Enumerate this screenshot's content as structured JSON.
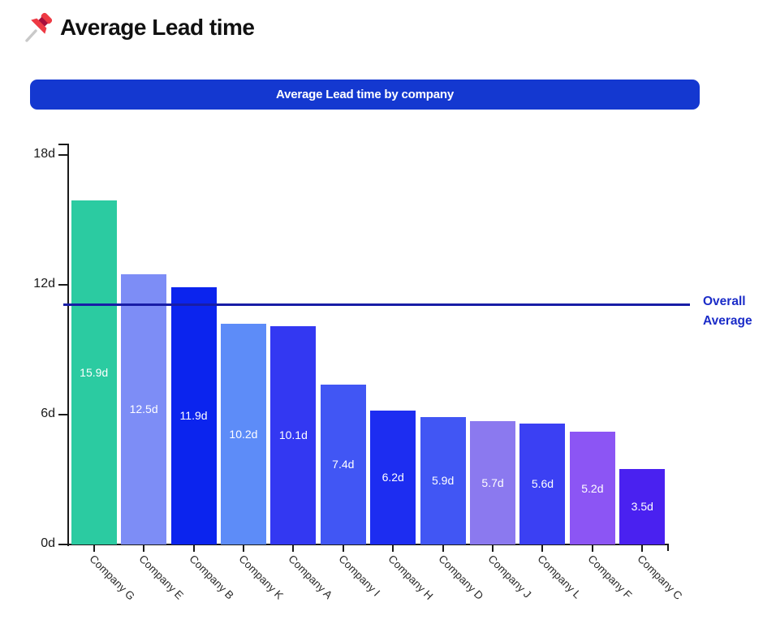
{
  "header": {
    "title": "Average Lead time"
  },
  "banner": {
    "label": "Average Lead time by company"
  },
  "colors": {
    "banner_bg": "#1438D0",
    "title_text": "#111111",
    "axis": "#1a1a1a",
    "bar_value_text": "#ffffff",
    "average_line": "#181DA6",
    "legend_text": "#1B2CC8"
  },
  "chart_data": {
    "type": "bar",
    "title": "Average Lead time by company",
    "xlabel": "",
    "ylabel": "",
    "unit": "d",
    "ylim": [
      0,
      18
    ],
    "grid": false,
    "legend_position": "right",
    "x_label_rotation_deg": 45,
    "categories": [
      "Company G",
      "Company E",
      "Company B",
      "Company K",
      "Company A",
      "Company I",
      "Company H",
      "Company D",
      "Company J",
      "Company L",
      "Company F",
      "Company C"
    ],
    "values": [
      15.9,
      12.5,
      11.9,
      10.2,
      10.1,
      7.4,
      6.2,
      5.9,
      5.7,
      5.6,
      5.2,
      3.5
    ],
    "bar_labels": [
      "15.9d",
      "12.5d",
      "11.9d",
      "10.2d",
      "10.1d",
      "7.4d",
      "6.2d",
      "5.9d",
      "5.7d",
      "5.6d",
      "5.2d",
      "3.5d"
    ],
    "bar_colors": [
      "#2BCBA1",
      "#7D8DF6",
      "#0B24EE",
      "#5D8CF8",
      "#3338F2",
      "#4156F4",
      "#1D2DF1",
      "#4156F4",
      "#8B79EF",
      "#3B40F3",
      "#8C55F4",
      "#4A21F0"
    ],
    "y_ticks": [
      {
        "value": 0,
        "label": "0d"
      },
      {
        "value": 6,
        "label": "6d"
      },
      {
        "value": 12,
        "label": "12d"
      },
      {
        "value": 18,
        "label": "18d"
      }
    ],
    "overall_average": {
      "value": 11.1,
      "label_lines": [
        "Overall",
        "Average"
      ]
    }
  }
}
